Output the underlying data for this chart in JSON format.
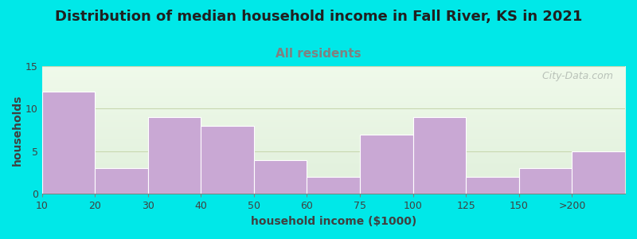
{
  "title": "Distribution of median household income in Fall River, KS in 2021",
  "subtitle": "All residents",
  "xlabel": "household income ($1000)",
  "ylabel": "households",
  "bar_labels": [
    "10",
    "20",
    "30",
    "40",
    "50",
    "60",
    "75",
    "100",
    "125",
    "150",
    ">200"
  ],
  "bar_values": [
    12,
    3,
    9,
    8,
    4,
    2,
    7,
    9,
    2,
    3,
    5
  ],
  "bar_color": "#c9a8d4",
  "bar_edgecolor": "#ffffff",
  "ylim": [
    0,
    15
  ],
  "yticks": [
    0,
    5,
    10,
    15
  ],
  "background_outer": "#00e8e8",
  "grid_color": "#c8d8b0",
  "title_fontsize": 13,
  "subtitle_fontsize": 11,
  "subtitle_color": "#808080",
  "axis_label_fontsize": 10,
  "tick_fontsize": 9,
  "watermark_text": "  City-Data.com",
  "watermark_color": "#b0b8b0"
}
